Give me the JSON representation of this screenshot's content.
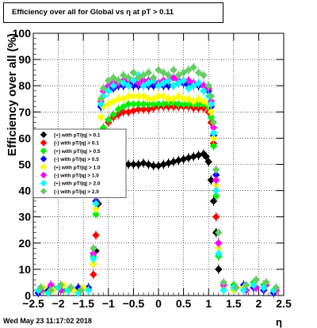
{
  "title": "Efficiency over all for Global vs   η at pT > 0.11",
  "footer_date": "Wed May 23 11:17:02 2018",
  "chart_data": {
    "type": "scatter",
    "title": "Efficiency over all for Global vs   η at pT > 0.11",
    "xlabel": "η",
    "ylabel": "Efficiency over all (%)",
    "xlim": [
      -2.5,
      2.5
    ],
    "ylim": [
      0,
      100
    ],
    "xticks": [
      -2.5,
      -2,
      -1.5,
      -1,
      -0.5,
      0,
      0.5,
      1,
      1.5,
      2,
      2.5
    ],
    "xtick_labels": [
      "−2.5",
      "−2",
      "−1.5",
      "−1",
      "−0.5",
      "0",
      "0.5",
      "1",
      "1.5",
      "2",
      "2.5"
    ],
    "yticks": [
      0,
      10,
      20,
      30,
      40,
      50,
      60,
      70,
      80,
      90,
      100
    ],
    "ytick_labels": [
      "0",
      "10",
      "20",
      "30",
      "40",
      "50",
      "60",
      "70",
      "80",
      "90",
      "100"
    ],
    "grid": true,
    "legend_position": "left-middle",
    "series": [
      {
        "name": "(+) with pT/|q| > 0.1",
        "color": "#000000",
        "points": [
          [
            -1.25,
            17
          ],
          [
            -1.2,
            35
          ],
          [
            -1.15,
            46
          ],
          [
            -1.1,
            48
          ],
          [
            -1.0,
            49
          ],
          [
            -0.9,
            49.5
          ],
          [
            -0.8,
            49.5
          ],
          [
            -0.7,
            50
          ],
          [
            -0.6,
            50
          ],
          [
            -0.5,
            50
          ],
          [
            -0.4,
            50
          ],
          [
            -0.3,
            50.5
          ],
          [
            -0.2,
            50
          ],
          [
            -0.1,
            49.5
          ],
          [
            0.0,
            49.5
          ],
          [
            0.1,
            50
          ],
          [
            0.2,
            50.5
          ],
          [
            0.3,
            51
          ],
          [
            0.4,
            51.5
          ],
          [
            0.5,
            52
          ],
          [
            0.6,
            52.5
          ],
          [
            0.7,
            53
          ],
          [
            0.8,
            53.5
          ],
          [
            0.9,
            54
          ],
          [
            0.95,
            53
          ],
          [
            1.0,
            51
          ],
          [
            1.05,
            44
          ],
          [
            1.1,
            36
          ],
          [
            1.15,
            24
          ],
          [
            1.2,
            10
          ]
        ]
      },
      {
        "name": "(-) with pT/|q| > 0.1",
        "color": "#ff0000",
        "points": [
          [
            -1.3,
            8
          ],
          [
            -1.25,
            23
          ],
          [
            -1.2,
            45
          ],
          [
            -1.15,
            56
          ],
          [
            -1.1,
            63
          ],
          [
            -1.0,
            66
          ],
          [
            -0.9,
            68
          ],
          [
            -0.8,
            69
          ],
          [
            -0.7,
            70
          ],
          [
            -0.6,
            70
          ],
          [
            -0.5,
            70.5
          ],
          [
            -0.4,
            71
          ],
          [
            -0.3,
            71
          ],
          [
            -0.2,
            71
          ],
          [
            -0.1,
            71.5
          ],
          [
            0.0,
            72
          ],
          [
            0.1,
            72
          ],
          [
            0.2,
            72
          ],
          [
            0.3,
            72
          ],
          [
            0.4,
            72
          ],
          [
            0.5,
            72
          ],
          [
            0.6,
            72
          ],
          [
            0.7,
            71.5
          ],
          [
            0.8,
            71.5
          ],
          [
            0.9,
            71.5
          ],
          [
            1.0,
            70
          ],
          [
            1.05,
            66
          ],
          [
            1.1,
            58
          ],
          [
            1.15,
            30
          ],
          [
            1.2,
            15
          ]
        ]
      },
      {
        "name": "(+) with pT/|q| > 0.5",
        "color": "#00ee00",
        "points": [
          [
            -2.3,
            2
          ],
          [
            -2.1,
            3
          ],
          [
            -1.9,
            2
          ],
          [
            -1.7,
            2
          ],
          [
            -1.5,
            3
          ],
          [
            -1.3,
            15
          ],
          [
            -1.25,
            31
          ],
          [
            -1.2,
            47
          ],
          [
            -1.15,
            58
          ],
          [
            -1.1,
            64
          ],
          [
            -1.0,
            67
          ],
          [
            -0.9,
            69
          ],
          [
            -0.8,
            71
          ],
          [
            -0.7,
            72
          ],
          [
            -0.6,
            73
          ],
          [
            -0.5,
            73
          ],
          [
            -0.4,
            73
          ],
          [
            -0.3,
            73
          ],
          [
            -0.2,
            73
          ],
          [
            -0.1,
            73
          ],
          [
            0.0,
            73
          ],
          [
            0.1,
            73
          ],
          [
            0.2,
            73.5
          ],
          [
            0.3,
            73.5
          ],
          [
            0.4,
            73
          ],
          [
            0.5,
            73
          ],
          [
            0.6,
            73
          ],
          [
            0.7,
            73
          ],
          [
            0.8,
            73
          ],
          [
            0.9,
            73
          ],
          [
            1.0,
            72
          ],
          [
            1.05,
            68
          ],
          [
            1.1,
            57
          ],
          [
            1.15,
            38
          ],
          [
            1.2,
            15
          ],
          [
            1.3,
            3
          ],
          [
            1.5,
            4
          ],
          [
            1.7,
            3
          ],
          [
            1.9,
            5
          ],
          [
            2.1,
            4
          ],
          [
            2.3,
            2
          ]
        ]
      },
      {
        "name": "(-) with pT/|q| > 0.5",
        "color": "#0000ff",
        "points": [
          [
            -2.4,
            1
          ],
          [
            -2.2,
            2
          ],
          [
            -2.0,
            3
          ],
          [
            -1.8,
            2
          ],
          [
            -1.6,
            3
          ],
          [
            -1.4,
            3
          ],
          [
            -1.3,
            12
          ],
          [
            -1.25,
            36
          ],
          [
            -1.2,
            58
          ],
          [
            -1.15,
            72
          ],
          [
            -1.1,
            76
          ],
          [
            -1.0,
            78
          ],
          [
            -0.9,
            79
          ],
          [
            -0.8,
            80
          ],
          [
            -0.7,
            80
          ],
          [
            -0.6,
            81
          ],
          [
            -0.5,
            80
          ],
          [
            -0.4,
            80
          ],
          [
            -0.3,
            80
          ],
          [
            -0.2,
            80
          ],
          [
            -0.1,
            80
          ],
          [
            0.0,
            80
          ],
          [
            0.1,
            80
          ],
          [
            0.2,
            80
          ],
          [
            0.3,
            80
          ],
          [
            0.4,
            81
          ],
          [
            0.5,
            81
          ],
          [
            0.6,
            80
          ],
          [
            0.7,
            80
          ],
          [
            0.8,
            80
          ],
          [
            0.9,
            80
          ],
          [
            1.0,
            78
          ],
          [
            1.05,
            72
          ],
          [
            1.1,
            61
          ],
          [
            1.15,
            46
          ],
          [
            1.2,
            20
          ],
          [
            1.3,
            3
          ],
          [
            1.5,
            2
          ],
          [
            1.7,
            4
          ],
          [
            1.9,
            3
          ],
          [
            2.1,
            2
          ],
          [
            2.3,
            1
          ]
        ]
      },
      {
        "name": "(+) with pT/|q| > 1.0",
        "color": "#ffff00",
        "points": [
          [
            -2.3,
            3
          ],
          [
            -2.1,
            2
          ],
          [
            -1.9,
            4
          ],
          [
            -1.7,
            2
          ],
          [
            -1.5,
            3
          ],
          [
            -1.3,
            12
          ],
          [
            -1.25,
            33
          ],
          [
            -1.2,
            52
          ],
          [
            -1.15,
            68
          ],
          [
            -1.1,
            72
          ],
          [
            -1.0,
            73
          ],
          [
            -0.9,
            74
          ],
          [
            -0.8,
            75
          ],
          [
            -0.7,
            75
          ],
          [
            -0.6,
            76
          ],
          [
            -0.5,
            76
          ],
          [
            -0.4,
            76
          ],
          [
            -0.3,
            76
          ],
          [
            -0.2,
            75
          ],
          [
            -0.1,
            75
          ],
          [
            0.0,
            76
          ],
          [
            0.1,
            76
          ],
          [
            0.2,
            75
          ],
          [
            0.3,
            75
          ],
          [
            0.4,
            76
          ],
          [
            0.5,
            75
          ],
          [
            0.6,
            75
          ],
          [
            0.7,
            74
          ],
          [
            0.8,
            75
          ],
          [
            0.9,
            74
          ],
          [
            1.0,
            73
          ],
          [
            1.05,
            70
          ],
          [
            1.1,
            60
          ],
          [
            1.15,
            42
          ],
          [
            1.2,
            18
          ],
          [
            1.3,
            3
          ],
          [
            1.5,
            2
          ],
          [
            1.7,
            3
          ],
          [
            1.9,
            4
          ],
          [
            2.1,
            3
          ],
          [
            2.3,
            2
          ]
        ]
      },
      {
        "name": "(-) with pT/|q| > 1.0",
        "color": "#ff00ff",
        "points": [
          [
            -2.35,
            2
          ],
          [
            -2.15,
            4
          ],
          [
            -1.95,
            2
          ],
          [
            -1.75,
            3
          ],
          [
            -1.55,
            2
          ],
          [
            -1.3,
            16
          ],
          [
            -1.25,
            38
          ],
          [
            -1.2,
            61
          ],
          [
            -1.15,
            74
          ],
          [
            -1.1,
            78
          ],
          [
            -1.0,
            80
          ],
          [
            -0.9,
            81
          ],
          [
            -0.8,
            81
          ],
          [
            -0.7,
            82
          ],
          [
            -0.6,
            82
          ],
          [
            -0.5,
            82
          ],
          [
            -0.4,
            81
          ],
          [
            -0.3,
            82
          ],
          [
            -0.2,
            82
          ],
          [
            -0.1,
            82
          ],
          [
            0.0,
            81
          ],
          [
            0.1,
            82
          ],
          [
            0.2,
            82
          ],
          [
            0.3,
            83
          ],
          [
            0.4,
            82
          ],
          [
            0.5,
            82
          ],
          [
            0.6,
            82
          ],
          [
            0.7,
            81
          ],
          [
            0.8,
            81
          ],
          [
            0.9,
            80
          ],
          [
            1.0,
            79
          ],
          [
            1.05,
            74
          ],
          [
            1.1,
            64
          ],
          [
            1.15,
            44
          ],
          [
            1.2,
            20
          ],
          [
            1.3,
            4
          ],
          [
            1.55,
            3
          ],
          [
            1.75,
            2
          ],
          [
            1.95,
            3
          ],
          [
            2.15,
            4
          ],
          [
            2.35,
            2
          ]
        ]
      },
      {
        "name": "(+) with pT/|q| > 2.0",
        "color": "#00ffff",
        "points": [
          [
            -2.4,
            2
          ],
          [
            -2.2,
            1
          ],
          [
            -2.0,
            3
          ],
          [
            -1.8,
            2
          ],
          [
            -1.6,
            1
          ],
          [
            -1.4,
            2
          ],
          [
            -1.3,
            14
          ],
          [
            -1.25,
            35
          ],
          [
            -1.2,
            60
          ],
          [
            -1.15,
            73
          ],
          [
            -1.1,
            76
          ],
          [
            -1.0,
            78
          ],
          [
            -0.9,
            80
          ],
          [
            -0.8,
            82
          ],
          [
            -0.7,
            81
          ],
          [
            -0.6,
            80
          ],
          [
            -0.5,
            82
          ],
          [
            -0.4,
            84
          ],
          [
            -0.3,
            80
          ],
          [
            -0.2,
            81
          ],
          [
            -0.1,
            82
          ],
          [
            0.0,
            80
          ],
          [
            0.1,
            81
          ],
          [
            0.2,
            82
          ],
          [
            0.3,
            80
          ],
          [
            0.4,
            81
          ],
          [
            0.5,
            82
          ],
          [
            0.6,
            79
          ],
          [
            0.7,
            80
          ],
          [
            0.8,
            81
          ],
          [
            0.9,
            78
          ],
          [
            1.0,
            76
          ],
          [
            1.05,
            73
          ],
          [
            1.1,
            62
          ],
          [
            1.15,
            40
          ],
          [
            1.2,
            16
          ],
          [
            1.3,
            2
          ],
          [
            1.5,
            3
          ],
          [
            1.7,
            2
          ],
          [
            1.9,
            4
          ],
          [
            2.1,
            3
          ],
          [
            2.3,
            2
          ]
        ]
      },
      {
        "name": "(-) with pT/|q| > 2.0",
        "color": "#66cc66",
        "points": [
          [
            -2.35,
            3
          ],
          [
            -2.15,
            2
          ],
          [
            -1.95,
            4
          ],
          [
            -1.75,
            3
          ],
          [
            -1.55,
            2
          ],
          [
            -1.3,
            18
          ],
          [
            -1.25,
            40
          ],
          [
            -1.2,
            62
          ],
          [
            -1.15,
            75
          ],
          [
            -1.1,
            79
          ],
          [
            -1.0,
            82
          ],
          [
            -0.9,
            83
          ],
          [
            -0.8,
            82
          ],
          [
            -0.7,
            84
          ],
          [
            -0.6,
            83
          ],
          [
            -0.5,
            85
          ],
          [
            -0.4,
            83
          ],
          [
            -0.3,
            84
          ],
          [
            -0.2,
            85
          ],
          [
            -0.1,
            83
          ],
          [
            0.0,
            86
          ],
          [
            0.1,
            85
          ],
          [
            0.2,
            84
          ],
          [
            0.3,
            86
          ],
          [
            0.4,
            84
          ],
          [
            0.5,
            85
          ],
          [
            0.6,
            86
          ],
          [
            0.7,
            87
          ],
          [
            0.8,
            85
          ],
          [
            0.9,
            84
          ],
          [
            1.0,
            80
          ],
          [
            1.05,
            76
          ],
          [
            1.1,
            66
          ],
          [
            1.15,
            48
          ],
          [
            1.2,
            24
          ],
          [
            1.3,
            5
          ],
          [
            1.55,
            3
          ],
          [
            1.75,
            4
          ],
          [
            1.95,
            6
          ],
          [
            2.15,
            5
          ],
          [
            2.35,
            3
          ]
        ]
      }
    ]
  }
}
